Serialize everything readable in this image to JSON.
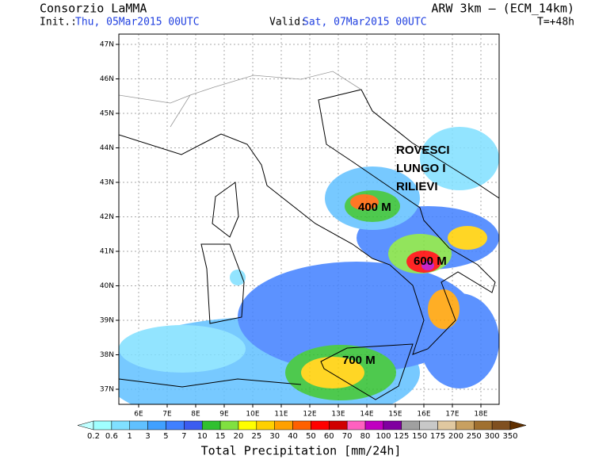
{
  "header": {
    "title": "Consorzio LaMMA",
    "model": "ARW 3km – (ECM_14km)",
    "init_label": "Init.:",
    "init": "Thu, 05Mar2015 00UTC",
    "valid_label": "Valid:",
    "valid": "Sat, 07Mar2015 00UTC",
    "lead": "T=+48h"
  },
  "map": {
    "lat_labels": [
      "47N",
      "46N",
      "45N",
      "44N",
      "43N",
      "42N",
      "41N",
      "40N",
      "39N",
      "38N",
      "37N"
    ],
    "lon_labels": [
      "6E",
      "7E",
      "8E",
      "9E",
      "10E",
      "11E",
      "12E",
      "13E",
      "14E",
      "15E",
      "16E",
      "17E",
      "18E"
    ],
    "annotations": [
      "ROVESCI",
      "LUNGO I",
      "RILIEVI",
      "400 M",
      "600 M",
      "700 M"
    ]
  },
  "legend": {
    "title": "Total Precipitation [mm/24h]",
    "labels": [
      "0.2",
      "0.6",
      "1",
      "3",
      "5",
      "7",
      "10",
      "15",
      "20",
      "25",
      "30",
      "40",
      "50",
      "60",
      "70",
      "80",
      "100",
      "125",
      "150",
      "175",
      "200",
      "250",
      "300",
      "350"
    ],
    "colors": [
      "#c0ffff",
      "#a0ffff",
      "#80e0ff",
      "#60c0ff",
      "#40a0ff",
      "#4080ff",
      "#3c5cf0",
      "#30c030",
      "#80e040",
      "#ffff00",
      "#ffd000",
      "#ffa000",
      "#ff6000",
      "#ff0000",
      "#d00000",
      "#ff60c0",
      "#c000c0",
      "#8000a0",
      "#a0a0a0",
      "#c8c8c8",
      "#e0c8a0",
      "#c8a060",
      "#a07030",
      "#805020",
      "#603000"
    ]
  }
}
